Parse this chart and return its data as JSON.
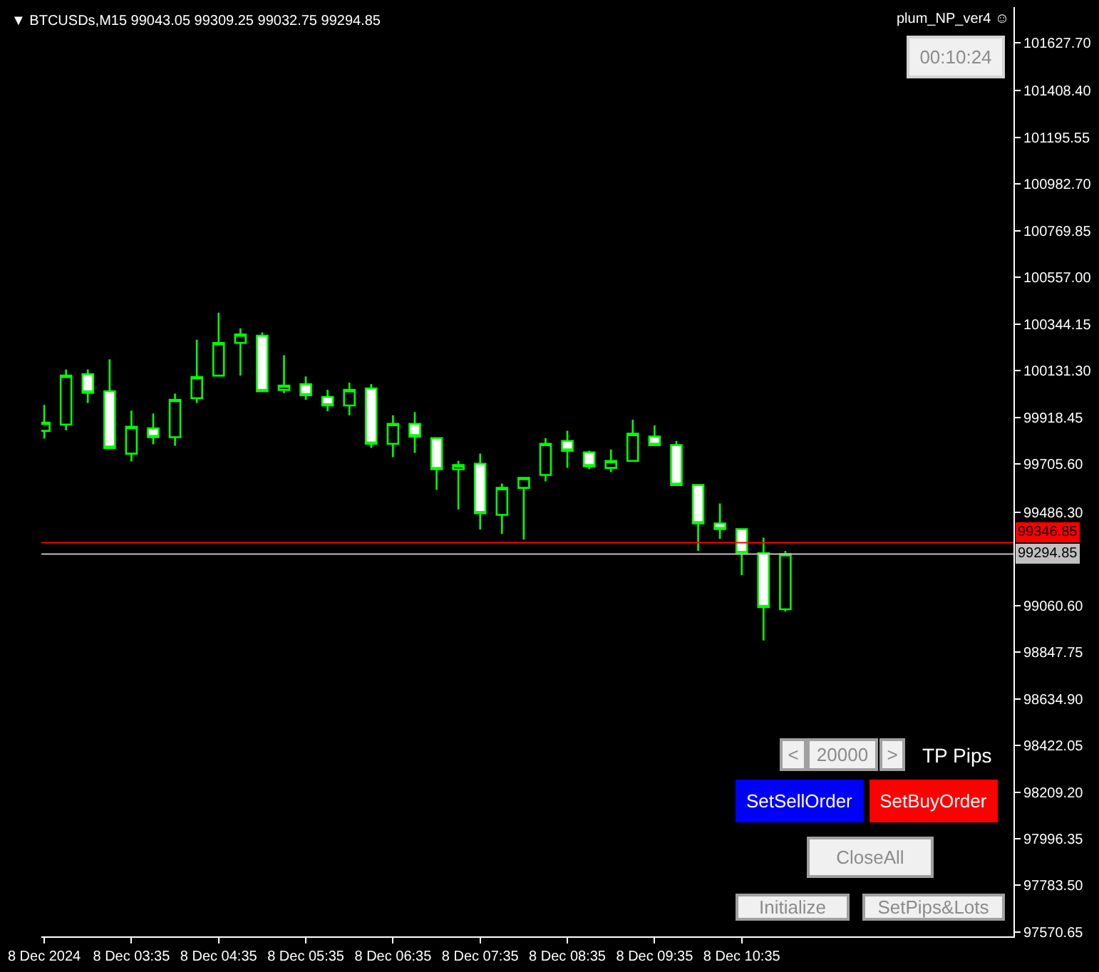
{
  "chart_data": {
    "type": "candlestick",
    "title": "▼ BTCUSDs,M15 99043.05 99309.25 99032.75 99294.85",
    "annotations": [
      "plum_NP_ver4 ☺",
      "00:10:24",
      "<",
      "20000",
      ">",
      "TP Pips",
      "SetSellOrder",
      "SetBuyOrder",
      "CloseAll",
      "Initialize",
      "SetPips&Lots"
    ],
    "x": [
      "2024-12-08T02:35",
      "2024-12-08T02:50",
      "2024-12-08T03:05",
      "2024-12-08T03:20",
      "2024-12-08T03:35",
      "2024-12-08T03:50",
      "2024-12-08T04:05",
      "2024-12-08T04:20",
      "2024-12-08T04:35",
      "2024-12-08T04:50",
      "2024-12-08T05:05",
      "2024-12-08T05:20",
      "2024-12-08T05:35",
      "2024-12-08T05:50",
      "2024-12-08T06:05",
      "2024-12-08T06:20",
      "2024-12-08T06:35",
      "2024-12-08T06:50",
      "2024-12-08T07:05",
      "2024-12-08T07:20",
      "2024-12-08T07:35",
      "2024-12-08T07:50",
      "2024-12-08T08:05",
      "2024-12-08T08:20",
      "2024-12-08T08:35",
      "2024-12-08T08:50",
      "2024-12-08T09:05",
      "2024-12-08T09:20",
      "2024-12-08T09:35",
      "2024-12-08T09:50",
      "2024-12-08T10:05",
      "2024-12-08T10:20",
      "2024-12-08T10:35",
      "2024-12-08T10:50",
      "2024-12-08T11:05"
    ],
    "ohlc": [
      [
        99857,
        99975,
        99822,
        99895
      ],
      [
        99886,
        100137,
        99860,
        100109
      ],
      [
        100116,
        100137,
        99984,
        100031
      ],
      [
        100038,
        100183,
        99779,
        99779
      ],
      [
        99753,
        99949,
        99718,
        99876
      ],
      [
        99869,
        99936,
        99796,
        99828
      ],
      [
        99828,
        100027,
        99789,
        99999
      ],
      [
        100006,
        100273,
        99984,
        100103
      ],
      [
        100109,
        100396,
        100109,
        100258
      ],
      [
        100258,
        100325,
        100109,
        100297
      ],
      [
        100291,
        100306,
        100038,
        100038
      ],
      [
        100044,
        100202,
        100029,
        100064
      ],
      [
        100070,
        100105,
        99999,
        100019
      ],
      [
        100012,
        100044,
        99947,
        99973
      ],
      [
        99973,
        100077,
        99928,
        100044
      ],
      [
        100051,
        100070,
        99779,
        99798
      ],
      [
        99798,
        99928,
        99737,
        99889
      ],
      [
        99889,
        99943,
        99757,
        99831
      ],
      [
        99824,
        99824,
        99588,
        99682
      ],
      [
        99682,
        99720,
        99498,
        99701
      ],
      [
        99707,
        99753,
        99407,
        99481
      ],
      [
        99474,
        99617,
        99387,
        99597
      ],
      [
        99597,
        99643,
        99361,
        99643
      ],
      [
        99656,
        99824,
        99627,
        99798
      ],
      [
        99811,
        99857,
        99688,
        99766
      ],
      [
        99759,
        99766,
        99682,
        99695
      ],
      [
        99688,
        99772,
        99669,
        99720
      ],
      [
        99720,
        99908,
        99720,
        99844
      ],
      [
        99831,
        99882,
        99792,
        99792
      ],
      [
        99792,
        99811,
        99610,
        99610
      ],
      [
        99610,
        99610,
        99310,
        99435
      ],
      [
        99435,
        99526,
        99364,
        99409
      ],
      [
        99409,
        99409,
        99199,
        99299
      ],
      [
        99299,
        99370,
        98901,
        99053
      ],
      [
        99043.05,
        99309.25,
        99032.75,
        99294.85
      ]
    ],
    "color": "#00ff00",
    "xlim": [
      "2024-12-08T02:33",
      "2024-12-08T13:42"
    ],
    "xticks": [
      {
        "value": "2024-12-08T02:35",
        "label": "8 Dec 2024"
      },
      {
        "value": "2024-12-08T03:35",
        "label": "8 Dec 03:35"
      },
      {
        "value": "2024-12-08T04:35",
        "label": "8 Dec 04:35"
      },
      {
        "value": "2024-12-08T05:35",
        "label": "8 Dec 05:35"
      },
      {
        "value": "2024-12-08T06:35",
        "label": "8 Dec 06:35"
      },
      {
        "value": "2024-12-08T07:35",
        "label": "8 Dec 07:35"
      },
      {
        "value": "2024-12-08T08:35",
        "label": "8 Dec 08:35"
      },
      {
        "value": "2024-12-08T09:35",
        "label": "8 Dec 09:35"
      },
      {
        "value": "2024-12-08T10:35",
        "label": "8 Dec 10:35"
      }
    ],
    "ylim": [
      97551,
      101790
    ],
    "yticks": [
      {
        "value": 101627.7,
        "label": "101627.70"
      },
      {
        "value": 101408.4,
        "label": "101408.40"
      },
      {
        "value": 101195.55,
        "label": "101195.55"
      },
      {
        "value": 100982.7,
        "label": "100982.70"
      },
      {
        "value": 100769.85,
        "label": "100769.85"
      },
      {
        "value": 100557,
        "label": "100557.00"
      },
      {
        "value": 100344.15,
        "label": "100344.15"
      },
      {
        "value": 100131.3,
        "label": "100131.30"
      },
      {
        "value": 99918.45,
        "label": "99918.45"
      },
      {
        "value": 99705.6,
        "label": "99705.60"
      },
      {
        "value": 99486.3,
        "label": "99486.30"
      },
      {
        "value": 99060.6,
        "label": "99060.60"
      },
      {
        "value": 98847.75,
        "label": "98847.75"
      },
      {
        "value": 98634.9,
        "label": "98634.90"
      },
      {
        "value": 98422.05,
        "label": "98422.05"
      },
      {
        "value": 98209.2,
        "label": "98209.20"
      },
      {
        "value": 97996.35,
        "label": "97996.35"
      },
      {
        "value": 97783.5,
        "label": "97783.50"
      },
      {
        "value": 97570.65,
        "label": "97570.65"
      }
    ],
    "ref_lines": [
      {
        "axis": "y",
        "value": 99346.85,
        "label": "99346.85",
        "color": "#ff0000"
      },
      {
        "axis": "y",
        "value": 99294.85,
        "label": "99294.85",
        "color": "#c0c0c0"
      }
    ]
  }
}
